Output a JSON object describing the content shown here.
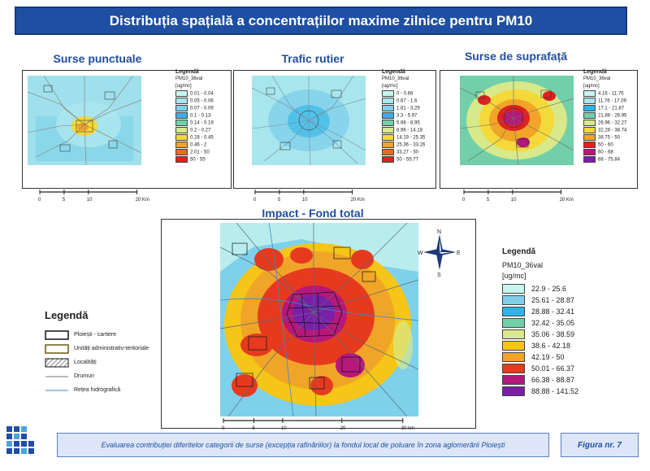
{
  "title": "Distribuția spațială a concentrațiilor maxime zilnice pentru PM10",
  "panels": {
    "punctuale": {
      "title": "Surse punctuale",
      "legend_title": "Legendă",
      "field": "PM10_36val",
      "unit": "[ug/mc]",
      "classes": [
        {
          "label": "0.01 - 0.04",
          "color": "#c8f4ee"
        },
        {
          "label": "0.05 - 0.06",
          "color": "#a8e6ee"
        },
        {
          "label": "0.07 - 0.09",
          "color": "#7fd0ea"
        },
        {
          "label": "0.1 - 0.13",
          "color": "#2fb4e6"
        },
        {
          "label": "0.14 - 0.19",
          "color": "#72cfa9"
        },
        {
          "label": "0.2 - 0.27",
          "color": "#d7e98a"
        },
        {
          "label": "0.28 - 0.45",
          "color": "#f5d83a"
        },
        {
          "label": "0.46 - 2",
          "color": "#f0a528"
        },
        {
          "label": "2.01 - 50",
          "color": "#ee6a1f"
        },
        {
          "label": "50 - 55",
          "color": "#e02020"
        }
      ],
      "scale": [
        "0",
        "5",
        "10",
        "20 Km"
      ]
    },
    "trafic": {
      "title": "Trafic rutier",
      "legend_title": "Legendă",
      "field": "PM10_36val",
      "unit": "[ug/mc]",
      "classes": [
        {
          "label": "0 - 0.66",
          "color": "#c8f4ee"
        },
        {
          "label": "0.67 - 1.6",
          "color": "#a8e6ee"
        },
        {
          "label": "1.61 - 3.29",
          "color": "#7fd0ea"
        },
        {
          "label": "3.3 - 5.97",
          "color": "#2fb4e6"
        },
        {
          "label": "5.98 - 8.95",
          "color": "#72cfa9"
        },
        {
          "label": "8.96 - 14.18",
          "color": "#d7e98a"
        },
        {
          "label": "14.19 - 25.35",
          "color": "#f5d83a"
        },
        {
          "label": "25.36 - 33.26",
          "color": "#f0a528"
        },
        {
          "label": "33.27 - 50",
          "color": "#ee6a1f"
        },
        {
          "label": "50 - 55.77",
          "color": "#e02020"
        }
      ],
      "scale": [
        "0",
        "5",
        "10",
        "20 Km"
      ]
    },
    "suprafata": {
      "title": "Surse de suprafață",
      "legend_title": "Legendă",
      "field": "PM10_36val",
      "unit": "[ug/mc]",
      "classes": [
        {
          "label": "4.16 - 11.75",
          "color": "#c8f4ee"
        },
        {
          "label": "11.76 - 17.09",
          "color": "#a8e6ee"
        },
        {
          "label": "17.1 - 21.87",
          "color": "#2fb4e6"
        },
        {
          "label": "21.88 - 26.95",
          "color": "#72cfa9"
        },
        {
          "label": "26.96 - 32.27",
          "color": "#d7e98a"
        },
        {
          "label": "32.28 - 38.74",
          "color": "#f5d83a"
        },
        {
          "label": "38.75 - 50",
          "color": "#f0a528"
        },
        {
          "label": "50 - 60",
          "color": "#e02020"
        },
        {
          "label": "60 - 68",
          "color": "#b5187a"
        },
        {
          "label": "68 - 75.84",
          "color": "#7a1fa8"
        }
      ],
      "scale": [
        "0",
        "5",
        "10",
        "20 Km"
      ]
    },
    "total": {
      "title": "Impact - Fond total",
      "legend_title": "Legendă",
      "field": "PM10_36val",
      "unit": "[ug/mc]",
      "classes": [
        {
          "label": "22.9 - 25.6",
          "color": "#c8f4ee"
        },
        {
          "label": "25.61 - 28.87",
          "color": "#7fd0ea"
        },
        {
          "label": "28.88 - 32.41",
          "color": "#2fb4e6"
        },
        {
          "label": "32.42 - 35.05",
          "color": "#72cfa9"
        },
        {
          "label": "35.06 - 38.59",
          "color": "#d7e98a"
        },
        {
          "label": "38.6 - 42.18",
          "color": "#f5c518"
        },
        {
          "label": "42.19 - 50",
          "color": "#f0a528"
        },
        {
          "label": "50.01 - 66.37",
          "color": "#e63a1f"
        },
        {
          "label": "66.38 - 88.87",
          "color": "#b5187a"
        },
        {
          "label": "88.88 - 141.52",
          "color": "#7a1fa8"
        }
      ],
      "scale": [
        "0",
        "5",
        "10",
        "20",
        "30 km"
      ],
      "compass": {
        "n": "N",
        "s": "S",
        "e": "E",
        "w": "W"
      }
    }
  },
  "general_legend": {
    "title": "Legendă",
    "items": [
      {
        "label": "Ploiești - cartiere",
        "icon": "box-icon"
      },
      {
        "label": "Unități administrativ-teritoriale",
        "icon": "box-yellow-icon"
      },
      {
        "label": "Localități",
        "icon": "hatch-icon"
      },
      {
        "label": "Drumuri",
        "icon": "line-gray-icon"
      },
      {
        "label": "Rețea hidrografică",
        "icon": "line-blue-icon"
      }
    ]
  },
  "footer": {
    "caption": "Evaluarea contribuției diferitelor categorii de surse (excepția rafinăriilor) la fondul local de poluare în zona aglomerării Ploiești",
    "figure": "Figura nr. 7"
  }
}
